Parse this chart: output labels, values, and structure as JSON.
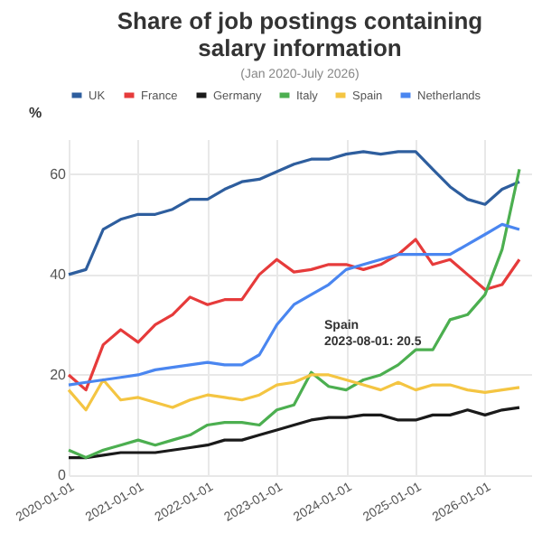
{
  "chart_data": {
    "type": "line",
    "title": "Share of job postings containing salary information",
    "ylabel": "%",
    "x": [
      "2020-01",
      "2020-04",
      "2020-07",
      "2020-10",
      "2021-01",
      "2021-04",
      "2021-07",
      "2021-10",
      "2022-01",
      "2022-04",
      "2022-07",
      "2022-10",
      "2023-01",
      "2023-04",
      "2023-07",
      "2023-10",
      "2024-01",
      "2024-04",
      "2024-07",
      "2024-10",
      "2025-01",
      "2025-04",
      "2025-07",
      "2025-10",
      "2026-01",
      "2026-04",
      "2026-07"
    ],
    "series": [
      {
        "name": "UK",
        "color": "#2e5e9e",
        "values": [
          40,
          41,
          49,
          51,
          52,
          52,
          53,
          55,
          55,
          57,
          58.5,
          59,
          60.5,
          62,
          63,
          63,
          64,
          64.5,
          64,
          64.5,
          64.5,
          61,
          57.5,
          55,
          54,
          57,
          58.5
        ]
      },
      {
        "name": "France",
        "color": "#e63b3b",
        "values": [
          20,
          17,
          26,
          29,
          26.5,
          30,
          32,
          35.5,
          34,
          35,
          35,
          40,
          43,
          40.5,
          41,
          42,
          42,
          41,
          42,
          44,
          47,
          42,
          43,
          40,
          37,
          38,
          43
        ]
      },
      {
        "name": "Germany",
        "color": "#1a1a1a",
        "values": [
          3.5,
          3.5,
          4,
          4.5,
          4.5,
          4.5,
          5,
          5.5,
          6,
          7,
          7,
          8,
          9,
          10,
          11,
          11.5,
          11.5,
          12,
          12,
          11,
          11,
          12,
          12,
          13,
          12,
          13,
          13.5
        ]
      },
      {
        "name": "Italy",
        "color": "#4caf50",
        "values": [
          5,
          3.5,
          5,
          6,
          7,
          6,
          7,
          8,
          10,
          10.5,
          10.5,
          10,
          13,
          14,
          20.5,
          17.7,
          17,
          19,
          20,
          22,
          25,
          25,
          31,
          32,
          36,
          45,
          61
        ]
      },
      {
        "name": "Spain",
        "color": "#f4c542",
        "values": [
          17,
          13,
          19,
          15,
          15.5,
          14.5,
          13.5,
          15,
          16,
          15.5,
          15,
          16,
          18,
          18.5,
          20,
          20,
          19,
          18,
          17,
          18.5,
          17,
          18,
          18,
          17,
          16.5,
          17,
          17.5
        ]
      },
      {
        "name": "Netherlands",
        "color": "#4a86f0",
        "values": [
          18,
          18.5,
          19,
          19.5,
          20,
          21,
          21.5,
          22,
          22.5,
          22,
          22,
          24,
          30,
          34,
          36,
          38,
          41,
          42,
          43,
          44,
          44,
          44,
          44,
          46,
          48,
          50,
          49
        ]
      }
    ],
    "xlim": [
      "2020-01-01",
      "2026-09-01"
    ],
    "xticks": [
      "2020-01-01",
      "2021-01-01",
      "2022-01-01",
      "2023-01-01",
      "2024-01-01",
      "2025-01-01",
      "2026-01-01"
    ],
    "ylim": [
      0,
      67
    ],
    "yticks": [
      0,
      20,
      40,
      60
    ],
    "grid": true,
    "legend": "top",
    "marker": "none",
    "line_style": "solid",
    "annotations": [
      {
        "text": "Spain\n2023-08-01: 20.5",
        "x": "2023-08-01",
        "y": 20.5
      },
      "(Jan 2020-July 2026)"
    ]
  }
}
